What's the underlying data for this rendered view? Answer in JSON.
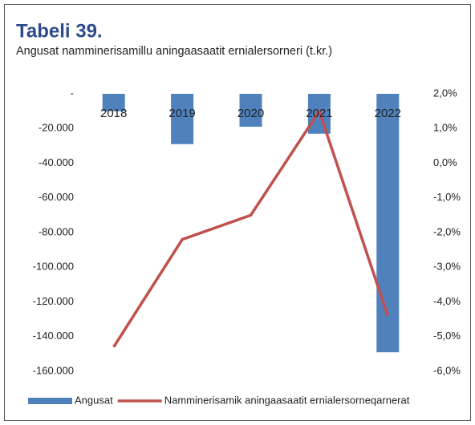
{
  "chart_data": {
    "type": "bar",
    "title": "Tabeli 39.",
    "subtitle": "Angusat namminerisamillu aningaasaatit ernialersorneri (t.kr.)",
    "categories": [
      "2018",
      "2019",
      "2020",
      "2021",
      "2022"
    ],
    "series": [
      {
        "name": "Angusat",
        "type": "bar",
        "color": "#4f81bd",
        "values": [
          -10000,
          -29000,
          -19000,
          -23000,
          -149000
        ]
      },
      {
        "name": "Namminerisamik aningaasaatit ernialersorneqarnerat",
        "type": "line",
        "axis": "y2",
        "color": "#c0504d",
        "values": [
          -5.3,
          -2.2,
          -1.5,
          1.5,
          -4.4
        ]
      }
    ],
    "ylim": [
      -160000,
      0
    ],
    "yticks": [
      {
        "value": 0,
        "label": "-"
      },
      {
        "value": -20000,
        "label": "-20.000"
      },
      {
        "value": -40000,
        "label": "-40.000"
      },
      {
        "value": -60000,
        "label": "-60.000"
      },
      {
        "value": -80000,
        "label": "-80.000"
      },
      {
        "value": -100000,
        "label": "-100.000"
      },
      {
        "value": -120000,
        "label": "-120.000"
      },
      {
        "value": -140000,
        "label": "-140.000"
      },
      {
        "value": -160000,
        "label": "-160.000"
      }
    ],
    "y2lim": [
      -6,
      2
    ],
    "y2ticks": [
      {
        "value": 2,
        "label": "2,0%"
      },
      {
        "value": 1,
        "label": "1,0%"
      },
      {
        "value": 0,
        "label": "0,0%"
      },
      {
        "value": -1,
        "label": "-1,0%"
      },
      {
        "value": -2,
        "label": "-2,0%"
      },
      {
        "value": -3,
        "label": "-3,0%"
      },
      {
        "value": -4,
        "label": "-4,0%"
      },
      {
        "value": -5,
        "label": "-5,0%"
      },
      {
        "value": -6,
        "label": "-6,0%"
      }
    ],
    "grid": false,
    "legend": "bottom"
  }
}
